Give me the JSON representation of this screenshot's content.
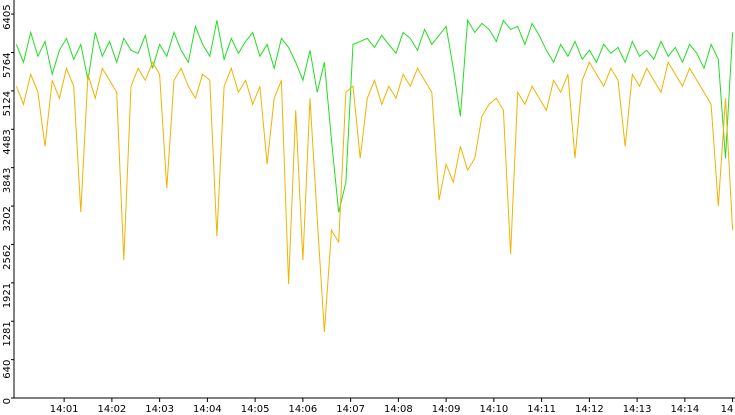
{
  "chart_data": {
    "type": "line",
    "x": [
      0,
      0.15,
      0.3,
      0.45,
      0.6,
      0.75,
      0.9,
      1.05,
      1.2,
      1.35,
      1.5,
      1.65,
      1.8,
      1.95,
      2.1,
      2.25,
      2.4,
      2.55,
      2.7,
      2.85,
      3.0,
      3.15,
      3.3,
      3.45,
      3.6,
      3.75,
      3.9,
      4.05,
      4.2,
      4.35,
      4.5,
      4.65,
      4.8,
      4.95,
      5.1,
      5.25,
      5.4,
      5.55,
      5.7,
      5.85,
      6.0,
      6.15,
      6.3,
      6.45,
      6.6,
      6.75,
      6.9,
      7.05,
      7.2,
      7.35,
      7.5,
      7.65,
      7.8,
      7.95,
      8.1,
      8.25,
      8.4,
      8.55,
      8.7,
      8.85,
      9.0,
      9.15,
      9.3,
      9.45,
      9.6,
      9.75,
      9.9,
      10.05,
      10.2,
      10.35,
      10.5,
      10.65,
      10.8,
      10.95,
      11.1,
      11.25,
      11.4,
      11.55,
      11.7,
      11.85,
      12.0,
      12.15,
      12.3,
      12.45,
      12.6,
      12.75,
      12.9,
      13.05,
      13.2,
      13.35,
      13.5,
      13.65,
      13.8,
      13.95,
      14.1,
      14.25,
      14.4,
      14.55,
      14.7,
      14.85,
      15.0
    ],
    "series": [
      {
        "color": "#22dd22",
        "values": [
          5900,
          5600,
          6100,
          5700,
          5950,
          5400,
          5800,
          6000,
          5650,
          5900,
          5300,
          6100,
          5700,
          5950,
          5600,
          6000,
          5800,
          5750,
          6050,
          5500,
          5900,
          5700,
          6100,
          5800,
          5600,
          6200,
          5900,
          5700,
          6300,
          5650,
          6000,
          5750,
          5950,
          6100,
          5700,
          5900,
          5500,
          6000,
          5850,
          5600,
          5300,
          5800,
          5100,
          5600,
          4300,
          3100,
          3600,
          5900,
          5950,
          6000,
          5850,
          6050,
          5900,
          5750,
          6100,
          6000,
          5800,
          6150,
          5900,
          6050,
          6200,
          5500,
          4700,
          6300,
          6100,
          6250,
          6150,
          5950,
          6300,
          6150,
          6200,
          5900,
          6250,
          6050,
          5800,
          5600,
          5900,
          5700,
          5950,
          5650,
          5800,
          5600,
          5900,
          5750,
          5850,
          5600,
          5950,
          5700,
          5800,
          5650,
          5950,
          5700,
          5850,
          5600,
          5900,
          5750,
          5500,
          5900,
          5650,
          4000,
          6100
        ]
      },
      {
        "color": "#f0b400",
        "values": [
          5200,
          4900,
          5400,
          5100,
          4200,
          5300,
          5000,
          5500,
          5200,
          3100,
          5400,
          5000,
          5500,
          5300,
          5100,
          2300,
          5200,
          5500,
          5300,
          5600,
          5400,
          3500,
          5300,
          5500,
          5200,
          5000,
          5400,
          5300,
          2700,
          5200,
          5500,
          5100,
          5300,
          4900,
          5200,
          3900,
          5000,
          5300,
          1900,
          4800,
          2300,
          5000,
          3000,
          1100,
          2800,
          2600,
          5100,
          5200,
          4000,
          5000,
          5300,
          4900,
          5200,
          5000,
          5400,
          5200,
          5500,
          5300,
          5100,
          3300,
          3900,
          3600,
          4200,
          3800,
          4000,
          4700,
          4900,
          5000,
          4800,
          2400,
          5100,
          4900,
          5200,
          5000,
          4800,
          5300,
          5100,
          5400,
          4000,
          5300,
          5600,
          5400,
          5200,
          5500,
          5300,
          4200,
          5400,
          5200,
          5500,
          5300,
          5100,
          5600,
          5400,
          5200,
          5500,
          5300,
          5100,
          4900,
          3200,
          5000,
          2800
        ]
      }
    ],
    "xlim": [
      -0.05,
      15.05
    ],
    "xticks": [
      {
        "value": 1,
        "label": "14:01"
      },
      {
        "value": 2,
        "label": "14:02"
      },
      {
        "value": 3,
        "label": "14:03"
      },
      {
        "value": 4,
        "label": "14:04"
      },
      {
        "value": 5,
        "label": "14:05"
      },
      {
        "value": 6,
        "label": "14:06"
      },
      {
        "value": 7,
        "label": "14:07"
      },
      {
        "value": 8,
        "label": "14:08"
      },
      {
        "value": 9,
        "label": "14:09"
      },
      {
        "value": 10,
        "label": "14:10"
      },
      {
        "value": 11,
        "label": "14:11"
      },
      {
        "value": 12,
        "label": "14:12"
      },
      {
        "value": 13,
        "label": "14:13"
      },
      {
        "value": 14,
        "label": "14:14"
      },
      {
        "value": 15,
        "label": "14"
      }
    ],
    "ylim": [
      0,
      6640
    ],
    "yticks": [
      0,
      640,
      1281,
      1921,
      2562,
      3202,
      3843,
      4483,
      5124,
      5764,
      6405
    ]
  }
}
